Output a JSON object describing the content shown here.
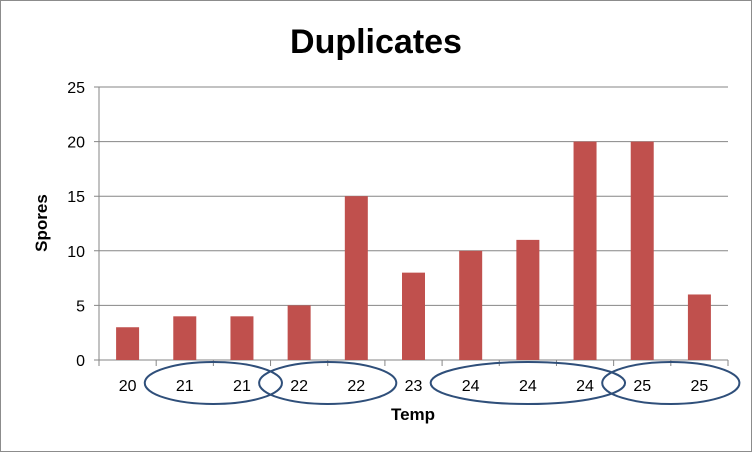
{
  "chart_data": {
    "type": "bar",
    "title": "Duplicates",
    "xlabel": "Temp",
    "ylabel": "Spores",
    "categories": [
      "20",
      "21",
      "21",
      "22",
      "22",
      "23",
      "24",
      "24",
      "24",
      "25",
      "25"
    ],
    "values": [
      3,
      4,
      4,
      5,
      15,
      8,
      10,
      11,
      20,
      20,
      6
    ],
    "ylim": [
      0,
      25
    ],
    "yticks": [
      "0",
      "5",
      "10",
      "15",
      "20",
      "25"
    ],
    "grid": "horizontal",
    "legend": "none",
    "bar_color": "#c0504d",
    "highlight_groups": [
      [
        1,
        2
      ],
      [
        3,
        4
      ],
      [
        6,
        8
      ],
      [
        9,
        10
      ]
    ],
    "highlight_color": "#2f4f7a"
  }
}
